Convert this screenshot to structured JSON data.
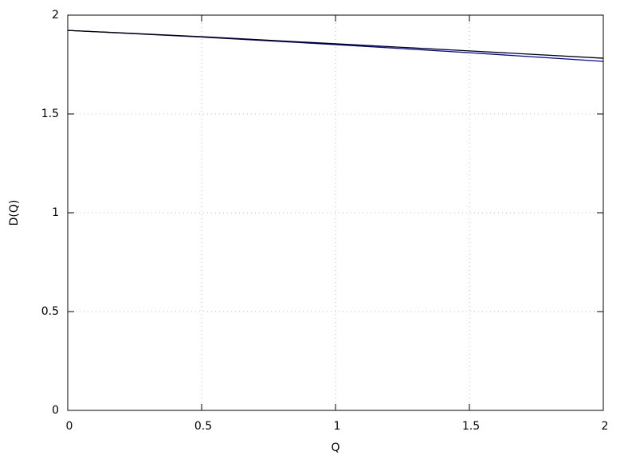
{
  "chart_data": {
    "type": "line",
    "x_label": "Q",
    "y_label": "D(Q)",
    "x": [
      0,
      0.5,
      1,
      1.5,
      2
    ],
    "series": [
      {
        "color": "#0000a0",
        "values": [
          1.923,
          1.889,
          1.851,
          1.81,
          1.766
        ]
      },
      {
        "color": "#000000",
        "values": [
          1.923,
          1.891,
          1.855,
          1.819,
          1.782
        ]
      }
    ],
    "xlim": [
      0,
      2
    ],
    "ylim": [
      0,
      2
    ],
    "xticks": [
      0,
      0.5,
      1,
      1.5,
      2
    ],
    "yticks": [
      0,
      0.5,
      1,
      1.5,
      2
    ],
    "grid": true
  }
}
